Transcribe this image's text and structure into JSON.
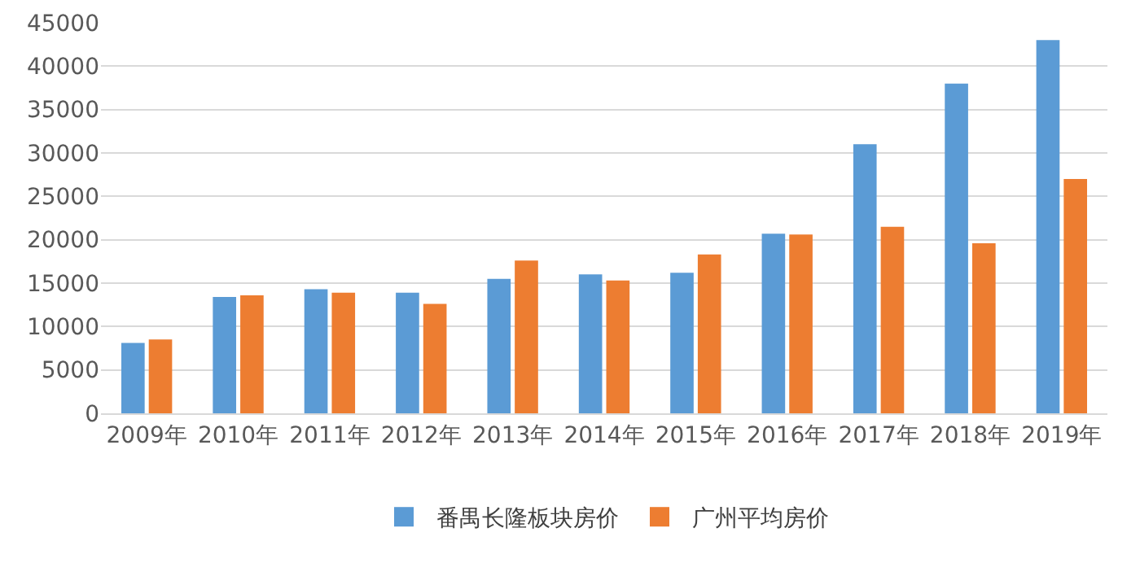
{
  "chart_data": {
    "type": "bar",
    "categories": [
      "2009年",
      "2010年",
      "2011年",
      "2012年",
      "2013年",
      "2014年",
      "2015年",
      "2016年",
      "2017年",
      "2018年",
      "2019年"
    ],
    "series": [
      {
        "name": "番禺长隆板块房价",
        "color": "#5b9bd5",
        "values": [
          8100,
          13400,
          14300,
          13900,
          15500,
          16000,
          16200,
          20700,
          31000,
          38000,
          43000
        ]
      },
      {
        "name": "广州平均房价",
        "color": "#ed7d31",
        "values": [
          8500,
          13600,
          13900,
          12600,
          17600,
          15300,
          18300,
          20600,
          21500,
          19600,
          27000
        ]
      }
    ],
    "ylim": [
      0,
      45000
    ],
    "yticks": [
      0,
      5000,
      10000,
      15000,
      20000,
      25000,
      30000,
      35000,
      40000,
      45000
    ],
    "grid": "y",
    "legend": "bottom"
  }
}
